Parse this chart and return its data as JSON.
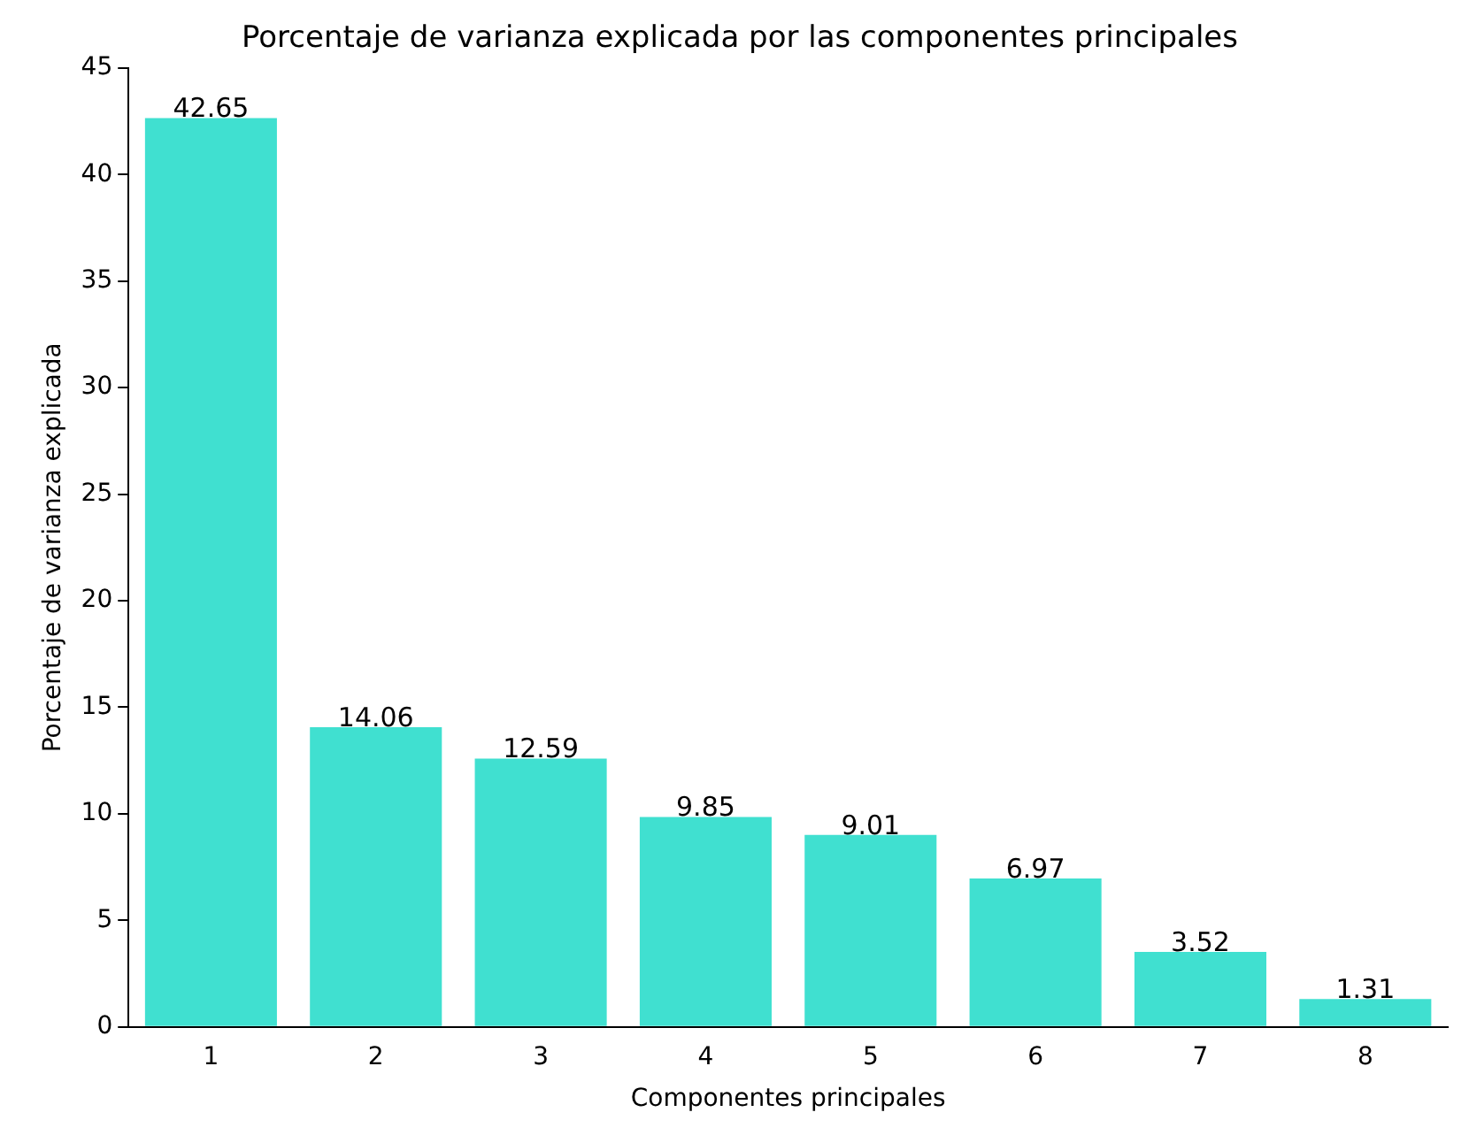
{
  "chart_data": {
    "type": "bar",
    "title": "Porcentaje de varianza explicada por las componentes principales",
    "xlabel": "Componentes principales",
    "ylabel": "Porcentaje de varianza explicada",
    "categories": [
      "1",
      "2",
      "3",
      "4",
      "5",
      "6",
      "7",
      "8"
    ],
    "values": [
      42.65,
      14.06,
      12.59,
      9.85,
      9.01,
      6.97,
      3.52,
      1.31
    ],
    "color": "#40e0d0",
    "ylim": [
      0,
      45
    ],
    "yticks": [
      0,
      5,
      10,
      15,
      20,
      25,
      30,
      35,
      40,
      45
    ],
    "data_labels": true,
    "grid": false,
    "legend": false
  }
}
